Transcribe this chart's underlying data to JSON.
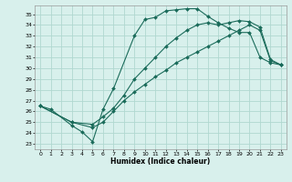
{
  "xlabel": "Humidex (Indice chaleur)",
  "ylabel": "",
  "background_color": "#d8f0ec",
  "grid_color": "#b0d8d0",
  "line_color": "#1a6b5a",
  "xlim": [
    -0.5,
    23.5
  ],
  "ylim": [
    22.5,
    35.8
  ],
  "xticks": [
    0,
    1,
    2,
    3,
    4,
    5,
    6,
    7,
    8,
    9,
    10,
    11,
    12,
    13,
    14,
    15,
    16,
    17,
    18,
    19,
    20,
    21,
    22,
    23
  ],
  "yticks": [
    23,
    24,
    25,
    26,
    27,
    28,
    29,
    30,
    31,
    32,
    33,
    34,
    35
  ],
  "series": [
    {
      "x": [
        0,
        1,
        3,
        4,
        5,
        6,
        7,
        9,
        10,
        11,
        12,
        13,
        14,
        15,
        16,
        17,
        18,
        19,
        20,
        21,
        22,
        23
      ],
      "y": [
        26.5,
        26.2,
        24.7,
        24.1,
        23.2,
        26.2,
        28.1,
        33.0,
        34.5,
        34.7,
        35.3,
        35.4,
        35.5,
        35.5,
        34.8,
        34.2,
        33.7,
        33.3,
        33.3,
        31.0,
        30.5,
        30.3
      ]
    },
    {
      "x": [
        0,
        3,
        5,
        6,
        7,
        8,
        9,
        10,
        11,
        12,
        13,
        14,
        15,
        16,
        17,
        18,
        19,
        20,
        21,
        22,
        23
      ],
      "y": [
        26.5,
        25.0,
        24.8,
        25.5,
        26.3,
        27.5,
        29.0,
        30.0,
        31.0,
        32.0,
        32.8,
        33.5,
        34.0,
        34.2,
        34.0,
        34.2,
        34.4,
        34.3,
        33.8,
        30.8,
        30.3
      ]
    },
    {
      "x": [
        0,
        3,
        5,
        6,
        7,
        8,
        9,
        10,
        11,
        12,
        13,
        14,
        15,
        16,
        17,
        18,
        19,
        20,
        21,
        22,
        23
      ],
      "y": [
        26.5,
        25.0,
        24.5,
        25.0,
        26.0,
        27.0,
        27.8,
        28.5,
        29.2,
        29.8,
        30.5,
        31.0,
        31.5,
        32.0,
        32.5,
        33.0,
        33.5,
        34.0,
        33.5,
        30.7,
        30.3
      ]
    }
  ]
}
